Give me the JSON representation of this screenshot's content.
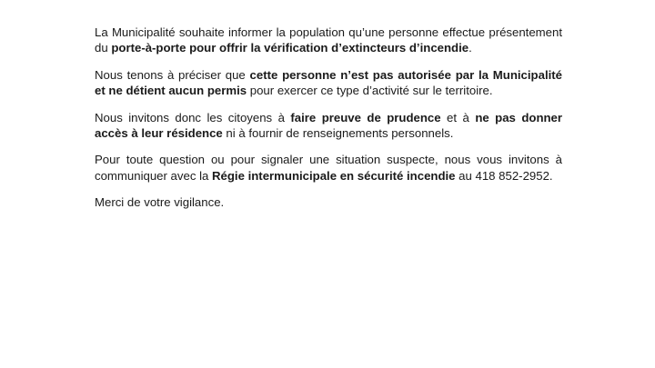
{
  "page": {
    "background_color": "#ffffff",
    "text_color": "#1a1a1a"
  },
  "document": {
    "language": "fr",
    "phone_number": "418 852-2952",
    "paragraphs": [
      {
        "runs": [
          {
            "text": "La Municipalité souhaite informer la population qu’une personne effectue présentement du ",
            "bold": false
          },
          {
            "text": "porte-à-porte pour offrir la vérification d’extincteurs d’incendie",
            "bold": true
          },
          {
            "text": ".",
            "bold": false
          }
        ]
      },
      {
        "runs": [
          {
            "text": "Nous tenons à préciser que ",
            "bold": false
          },
          {
            "text": "cette personne n’est pas autorisée par la Municipalité et ne détient aucun permis",
            "bold": true
          },
          {
            "text": " pour exercer ce type d’activité sur le territoire.",
            "bold": false
          }
        ]
      },
      {
        "runs": [
          {
            "text": "Nous invitons donc les citoyens à ",
            "bold": false
          },
          {
            "text": "faire preuve de prudence",
            "bold": true
          },
          {
            "text": " et à ",
            "bold": false
          },
          {
            "text": "ne pas donner accès à leur résidence",
            "bold": true
          },
          {
            "text": " ni à fournir de renseignements personnels.",
            "bold": false
          }
        ]
      },
      {
        "runs": [
          {
            "text": "Pour toute question ou pour signaler une situation suspecte, nous vous invitons à communiquer avec la ",
            "bold": false
          },
          {
            "text": "Régie intermunicipale en sécurité incendie",
            "bold": true
          },
          {
            "text": " au 418 852-2952.",
            "bold": false
          }
        ]
      },
      {
        "runs": [
          {
            "text": "Merci de votre vigilance.",
            "bold": false
          }
        ]
      }
    ]
  }
}
